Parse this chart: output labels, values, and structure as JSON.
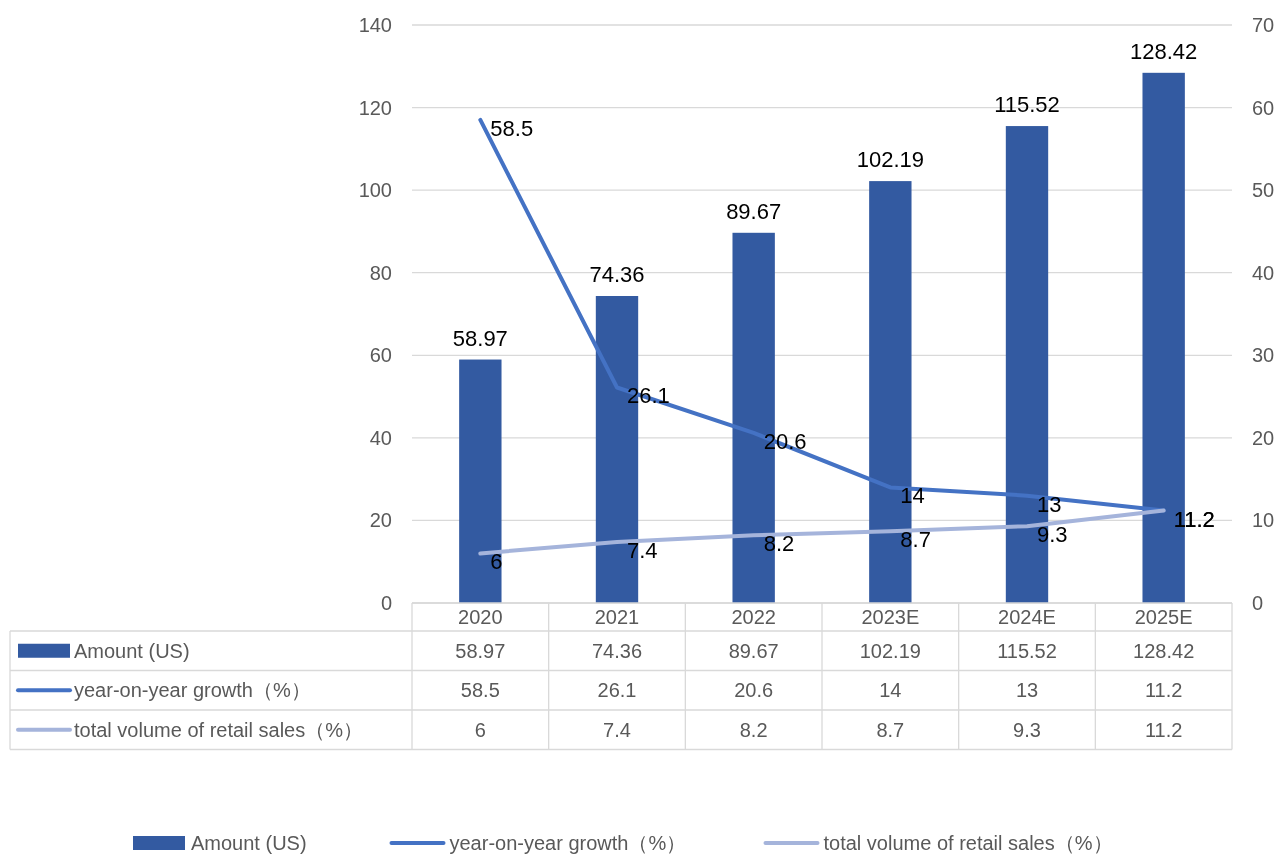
{
  "chart_data": {
    "type": "bar",
    "categories": [
      "2020",
      "2021",
      "2022",
      "2023E",
      "2024E",
      "2025E"
    ],
    "series": [
      {
        "name": "Amount (US)",
        "type": "bar",
        "color": "#335aa1",
        "values": [
          58.97,
          74.36,
          89.67,
          102.19,
          115.52,
          128.42
        ],
        "value_labels": [
          "58.97",
          "74.36",
          "89.67",
          "102.19",
          "115.52",
          "128.42"
        ]
      },
      {
        "name": "year-on-year growth（%）",
        "type": "line",
        "axis": "y2",
        "color": "#4472c4",
        "values": [
          58.5,
          26.1,
          20.6,
          14,
          13,
          11.2
        ],
        "value_labels": [
          "58.5",
          "26.1",
          "20.6",
          "14",
          "13",
          "11.2"
        ]
      },
      {
        "name": "total volume of retail sales（%）",
        "type": "line",
        "axis": "y2",
        "color": "#a5b4db",
        "values": [
          6,
          7.4,
          8.2,
          8.7,
          9.3,
          11.2
        ],
        "value_labels": [
          "6",
          "7.4",
          "8.2",
          "8.7",
          "9.3",
          "11.2"
        ]
      }
    ],
    "ylim": [
      0,
      140
    ],
    "yticks": [
      0,
      20,
      40,
      60,
      80,
      100,
      120,
      140
    ],
    "y2lim": [
      0,
      70
    ],
    "y2ticks": [
      0,
      10,
      20,
      30,
      40,
      50,
      60,
      70
    ],
    "grid": "y",
    "legend": "bottom",
    "marker": "none",
    "line_style": "solid"
  }
}
